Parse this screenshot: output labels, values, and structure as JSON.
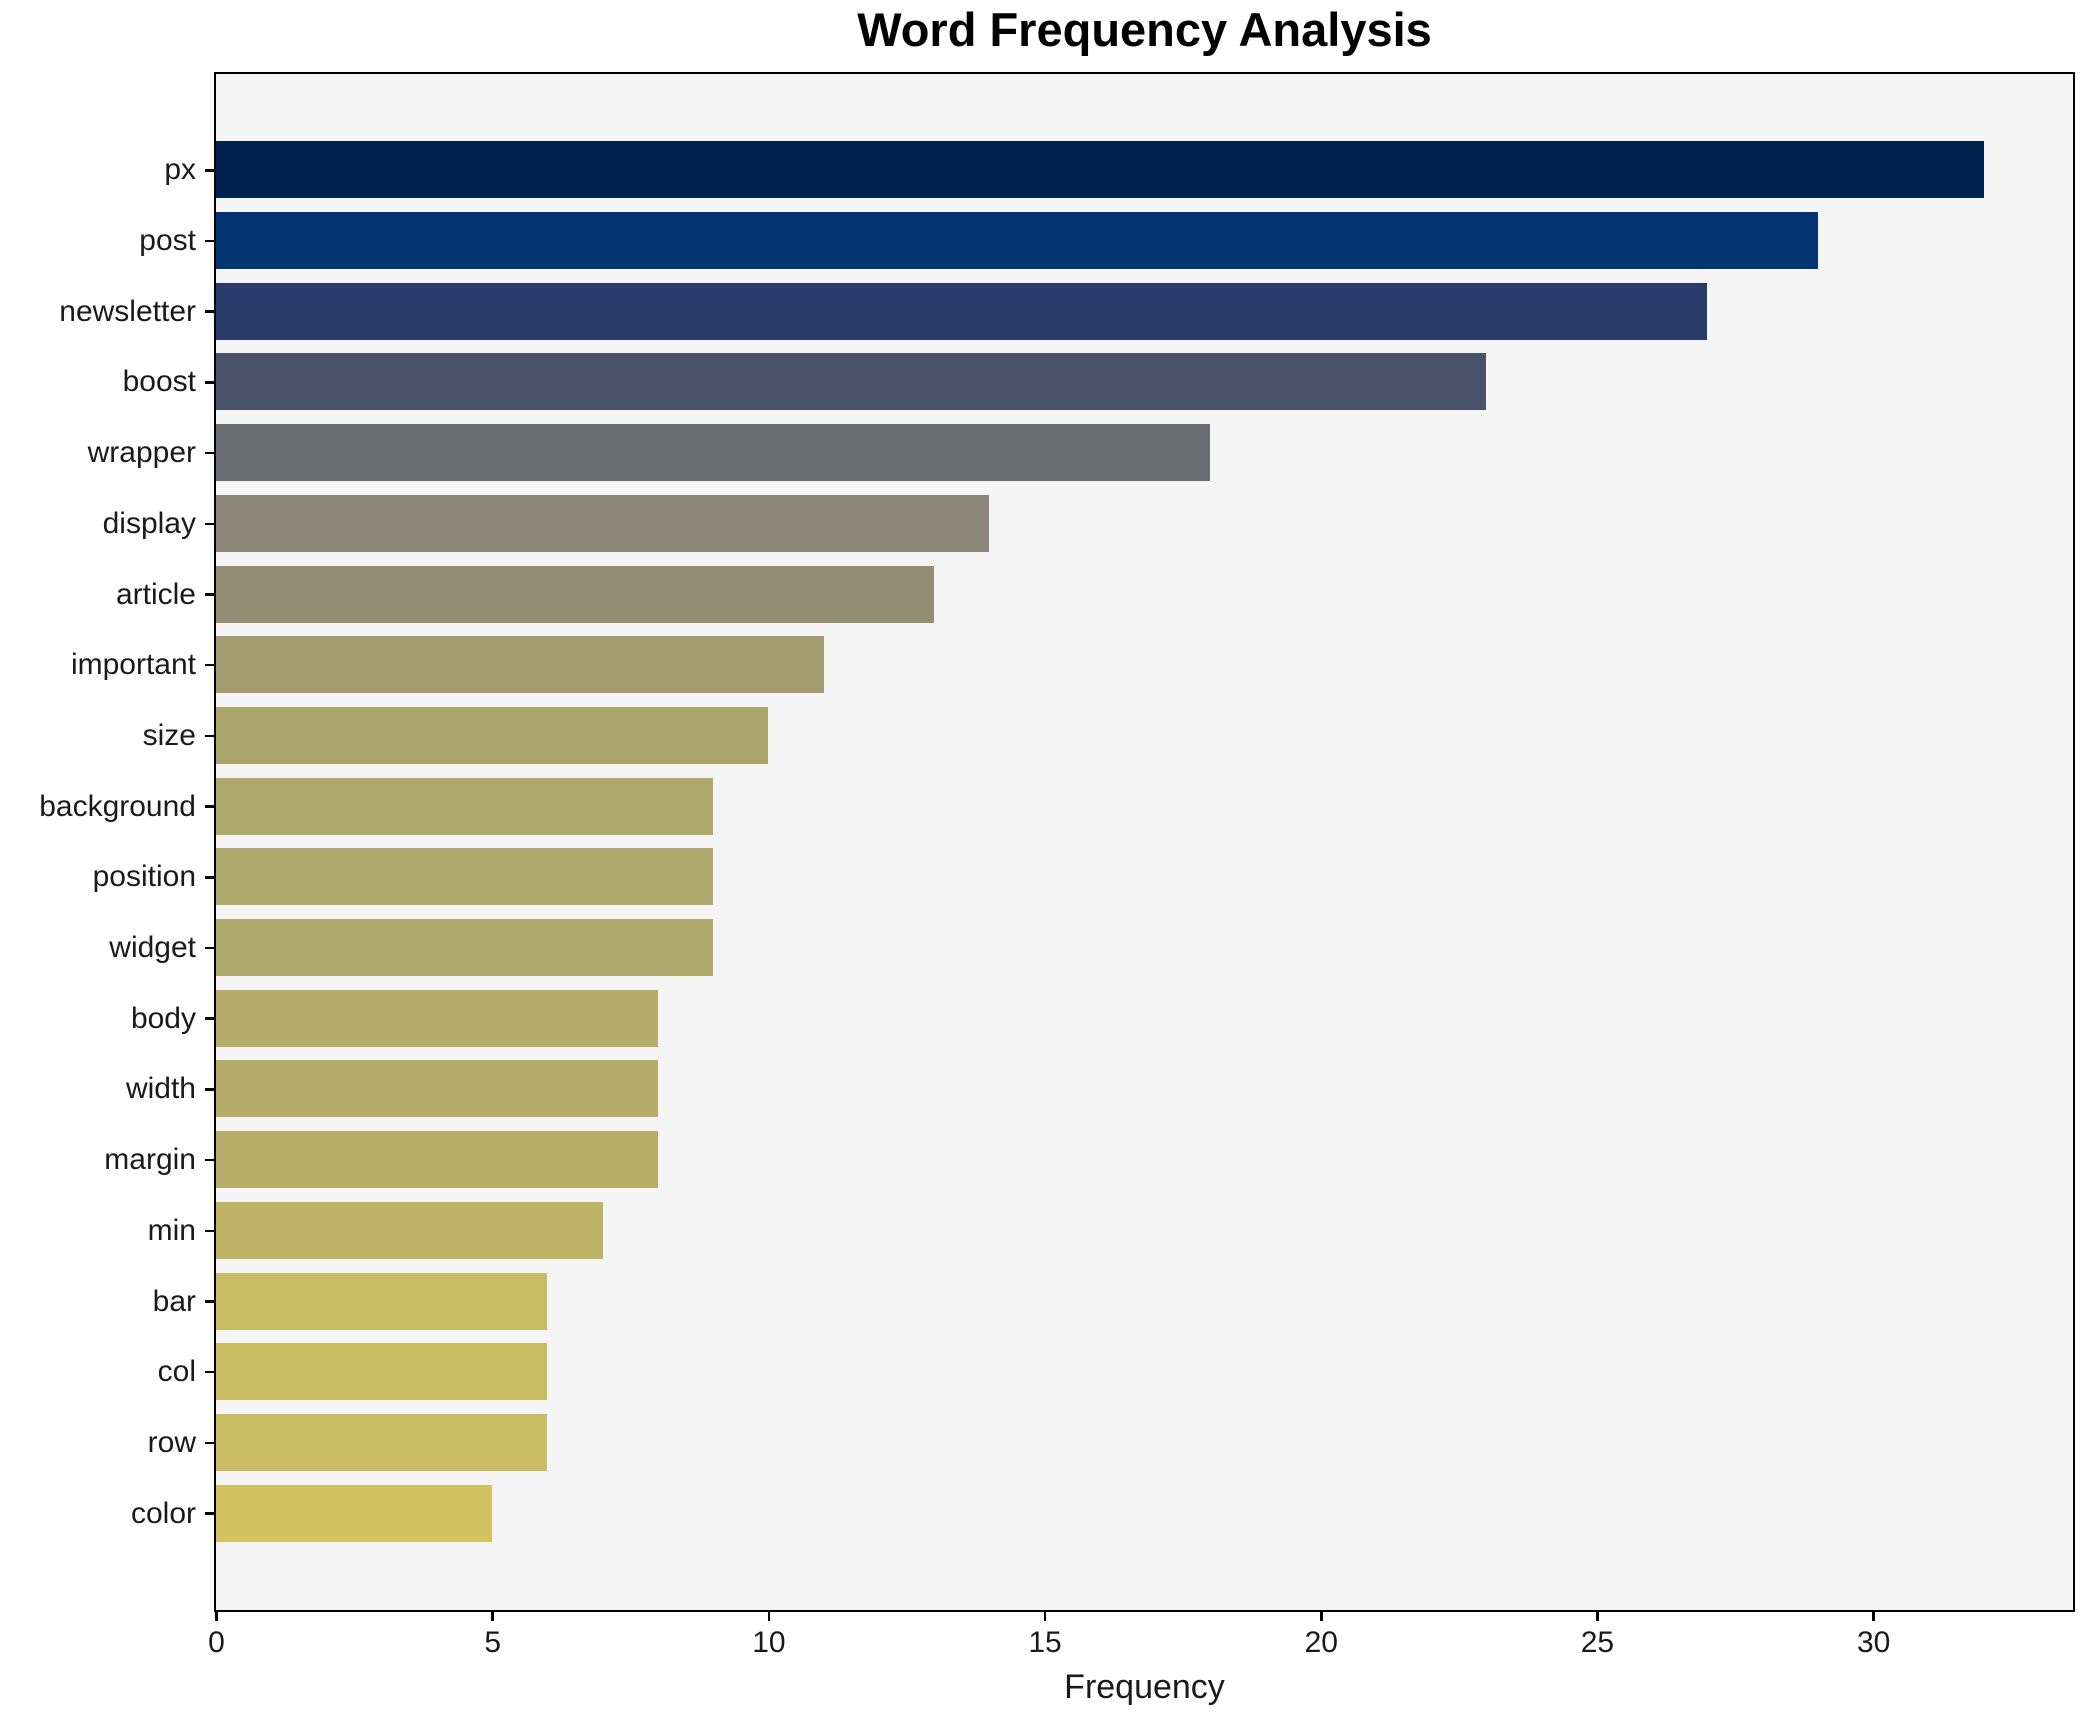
{
  "chart_data": {
    "type": "bar",
    "orientation": "horizontal",
    "title": "Word Frequency Analysis",
    "xlabel": "Frequency",
    "ylabel": "",
    "categories": [
      "px",
      "post",
      "newsletter",
      "boost",
      "wrapper",
      "display",
      "article",
      "important",
      "size",
      "background",
      "position",
      "widget",
      "body",
      "width",
      "margin",
      "min",
      "bar",
      "col",
      "row",
      "color"
    ],
    "values": [
      32,
      29,
      27,
      23,
      18,
      14,
      13,
      11,
      10,
      9,
      9,
      9,
      8,
      8,
      8,
      7,
      6,
      6,
      6,
      5
    ],
    "bar_colors": [
      "#00224f",
      "#043571",
      "#273c6b",
      "#4a516a",
      "#6c6d71",
      "#8a877a",
      "#948e74",
      "#a49d71",
      "#aca56e",
      "#b0a86c",
      "#b0a86c",
      "#b1a96c",
      "#b6ac69",
      "#b6ac69",
      "#b7ad68",
      "#bfb466",
      "#c8bb62",
      "#c8bb62",
      "#c9bc62",
      "#d2c35e"
    ],
    "xlim": [
      0,
      33.6
    ],
    "x_ticks": [
      0,
      5,
      10,
      15,
      20,
      25,
      30
    ],
    "grid": false,
    "legend_position": "none",
    "plot_background": "#f5f5f6",
    "figure_background": "#ffffff",
    "spine_color": "#000000",
    "colormap_hint": "cividis"
  }
}
